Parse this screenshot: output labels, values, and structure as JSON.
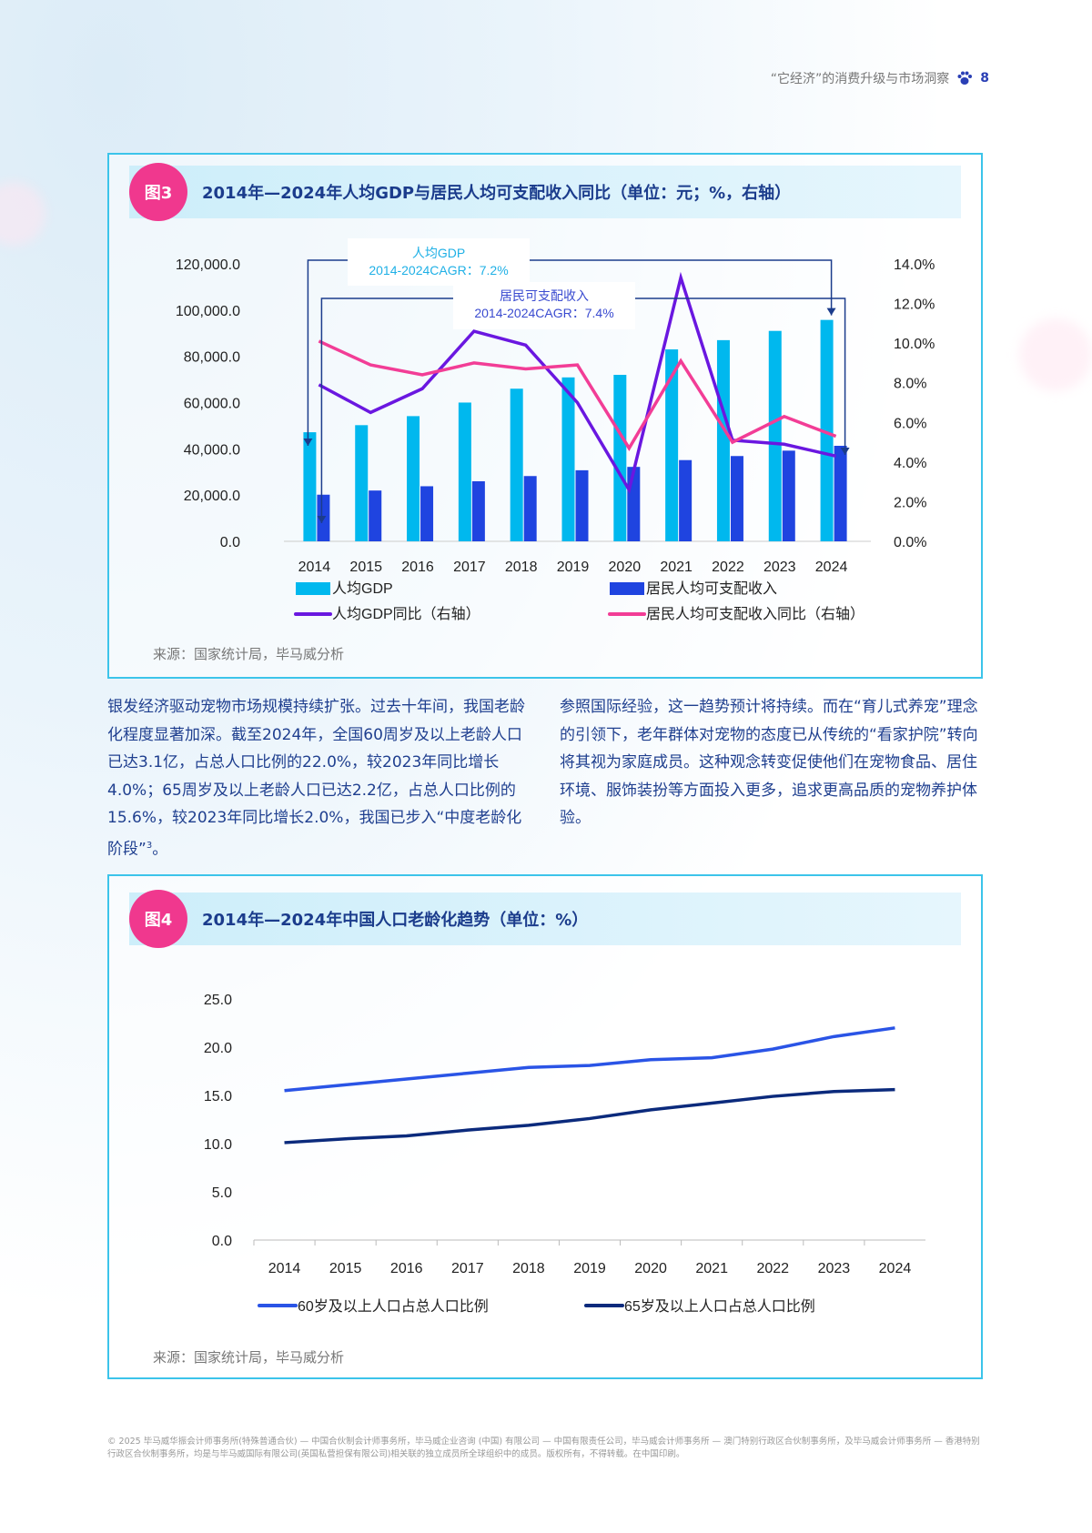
{
  "header": {
    "title": "“它经济”的消费升级与市场洞察",
    "page": "8",
    "icon": "paw-icon"
  },
  "fig3": {
    "badge": "图3",
    "title": "2014年—2024年人均GDP与居民人均可支配收入同比（单位：元；%，右轴）",
    "source": "来源：国家统计局，毕马威分析"
  },
  "fig4": {
    "badge": "图4",
    "title": "2014年—2024年中国人口老龄化趋势（单位：%）",
    "source": "来源：国家统计局，毕马威分析"
  },
  "body": {
    "left": "银发经济驱动宠物市场规模持续扩张。过去十年间，我国老龄化程度显著加深。截至2024年，全国60周岁及以上老龄人口已达3.1亿，占总人口比例的22.0%，较2023年同比增长4.0%；65周岁及以上老龄人口已达2.2亿，占总人口比例的15.6%，较2023年同比增长2.0%，我国已步入“中度老龄化阶段”",
    "left_sup": "3",
    "left_end": "。",
    "right": "参照国际经验，这一趋势预计将持续。而在“育儿式养宠”理念的引领下，老年群体对宠物的态度已从传统的“看家护院”转向将其视为家庭成员。这种观念转变促使他们在宠物食品、居住环境、服饰装扮等方面投入更多，追求更高品质的宠物养护体验。"
  },
  "footer": "© 2025 毕马威华振会计师事务所(特殊普通合伙) — 中国合伙制会计师事务所，毕马威企业咨询 (中国) 有限公司 — 中国有限责任公司，毕马威会计师事务所 — 澳门特别行政区合伙制事务所，及毕马威会计师事务所 — 香港特别行政区合伙制事务所，均是与毕马威国际有限公司(英国私营担保有限公司)相关联的独立成员所全球组织中的成员。版权所有，不得转载。在中国印刷。",
  "chart_data": [
    {
      "type": "bar",
      "categories": [
        "2014",
        "2015",
        "2016",
        "2017",
        "2018",
        "2019",
        "2020",
        "2021",
        "2022",
        "2023",
        "2024"
      ],
      "ylim": [
        0,
        120000
      ],
      "y_ticks": [
        "0.0",
        "20,000.0",
        "40,000.0",
        "60,000.0",
        "80,000.0",
        "100,000.0",
        "120,000.0"
      ],
      "y2lim": [
        0,
        14
      ],
      "y2_ticks": [
        "0.0%",
        "2.0%",
        "4.0%",
        "6.0%",
        "8.0%",
        "10.0%",
        "12.0%",
        "14.0%"
      ],
      "series": [
        {
          "name": "人均GDP",
          "type": "bar",
          "color": "#00b8ee",
          "values": [
            47173,
            50237,
            54139,
            60014,
            66006,
            70892,
            72000,
            83000,
            87000,
            91000,
            95749
          ]
        },
        {
          "name": "居民人均可支配收入",
          "type": "bar",
          "color": "#1f44e0",
          "values": [
            20167,
            21966,
            23821,
            25974,
            28228,
            30733,
            32189,
            35128,
            36883,
            39218,
            41314
          ]
        },
        {
          "name": "人均GDP同比（右轴）",
          "type": "line",
          "axis": "right",
          "color": "#6a17e0",
          "values": [
            7.9,
            6.5,
            7.7,
            10.6,
            9.9,
            7.0,
            2.6,
            13.3,
            5.1,
            4.9,
            4.3
          ]
        },
        {
          "name": "居民人均可支配收入同比（右轴）",
          "type": "line",
          "axis": "right",
          "color": "#f23d96",
          "values": [
            10.1,
            8.9,
            8.4,
            9.0,
            8.7,
            8.9,
            4.7,
            9.1,
            5.0,
            6.3,
            5.3
          ]
        }
      ],
      "annotations": [
        {
          "label": "人均GDP",
          "text": "2014-2024CAGR：7.2%"
        },
        {
          "label": "居民可支配收入",
          "text": "2014-2024CAGR：7.4%"
        }
      ]
    },
    {
      "type": "line",
      "categories": [
        "2014",
        "2015",
        "2016",
        "2017",
        "2018",
        "2019",
        "2020",
        "2021",
        "2022",
        "2023",
        "2024"
      ],
      "ylim": [
        0,
        25
      ],
      "y_ticks": [
        "0.0",
        "5.0",
        "10.0",
        "15.0",
        "20.0",
        "25.0"
      ],
      "series": [
        {
          "name": "60岁及以上人口占总人口比例",
          "color": "#2a54e6",
          "values": [
            15.5,
            16.1,
            16.7,
            17.3,
            17.9,
            18.1,
            18.7,
            18.9,
            19.8,
            21.1,
            22.0
          ]
        },
        {
          "name": "65岁及以上人口占总人口比例",
          "color": "#0b2a7c",
          "values": [
            10.1,
            10.5,
            10.8,
            11.4,
            11.9,
            12.6,
            13.5,
            14.2,
            14.9,
            15.4,
            15.6
          ]
        }
      ]
    }
  ]
}
